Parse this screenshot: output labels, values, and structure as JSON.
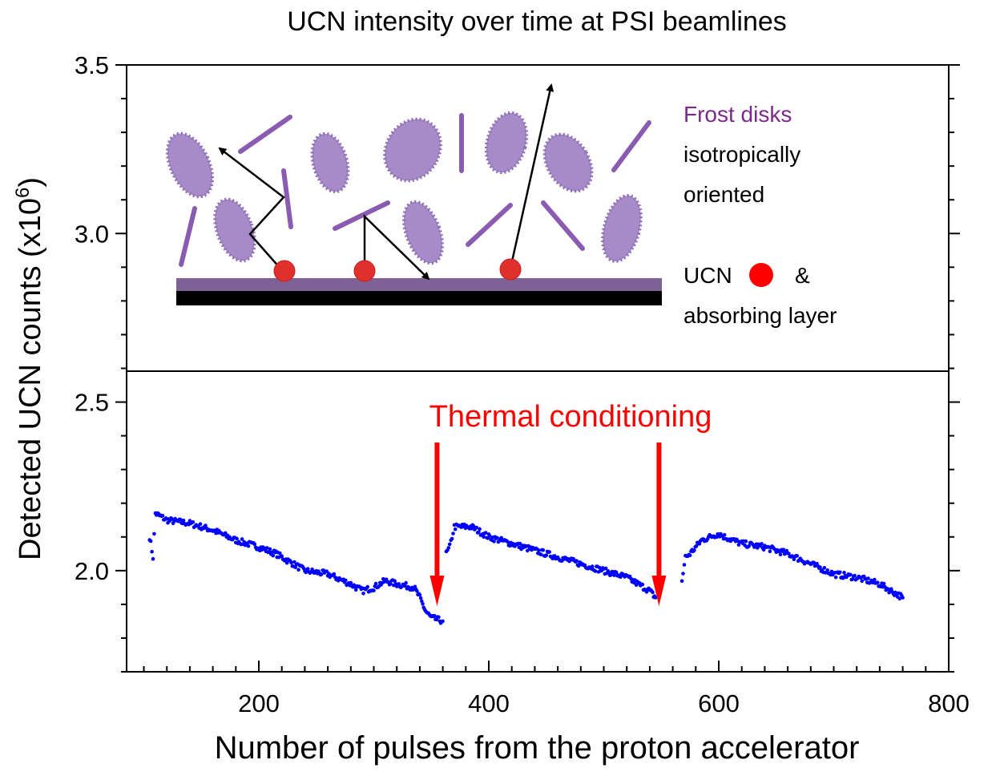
{
  "chart_data": {
    "type": "scatter",
    "title": "UCN intensity over time at PSI beamlines",
    "xlabel": "Number of pulses from the proton accelerator",
    "ylabel_main": "Detected UCN counts (x10",
    "ylabel_exp": "6",
    "ylabel_close": ")",
    "xlim": [
      85,
      800
    ],
    "ylim": [
      1.7,
      3.5
    ],
    "x_ticks": [
      200,
      400,
      600,
      800
    ],
    "x_tick_labels": [
      "200",
      "400",
      "600",
      "800"
    ],
    "y_ticks": [
      2.0,
      2.5,
      3.0,
      3.5
    ],
    "y_tick_labels": [
      "2.0",
      "2.5",
      "3.0",
      "3.5"
    ],
    "marker_color": "#0000ff",
    "segments": [
      {
        "x": [
          105,
          108,
          110,
          120,
          140,
          160,
          180,
          200,
          215,
          220,
          240,
          260,
          280,
          290,
          300,
          310,
          320,
          335,
          340,
          345,
          350,
          360
        ],
        "y": [
          2.1,
          2.04,
          2.17,
          2.15,
          2.14,
          2.12,
          2.09,
          2.07,
          2.05,
          2.04,
          2.0,
          1.99,
          1.96,
          1.94,
          1.95,
          1.97,
          1.96,
          1.95,
          1.92,
          1.88,
          1.86,
          1.85
        ]
      },
      {
        "x": [
          363,
          366,
          370,
          385,
          400,
          420,
          440,
          460,
          480,
          500,
          520,
          540,
          545
        ],
        "y": [
          2.05,
          2.07,
          2.13,
          2.13,
          2.1,
          2.08,
          2.06,
          2.04,
          2.02,
          2.0,
          1.98,
          1.94,
          1.92
        ]
      },
      {
        "x": [
          568,
          571,
          575,
          585,
          600,
          605,
          620,
          640,
          660,
          680,
          700,
          720,
          740,
          760
        ],
        "y": [
          1.97,
          2.04,
          2.05,
          2.09,
          2.11,
          2.1,
          2.08,
          2.07,
          2.05,
          2.02,
          1.99,
          1.98,
          1.96,
          1.92
        ]
      }
    ],
    "annotations": {
      "frost_disks": "Frost disks",
      "isotropically": "isotropically",
      "oriented": "oriented",
      "ucn": "UCN",
      "ampersand": "&",
      "absorbing_layer": "absorbing layer",
      "thermal_conditioning": "Thermal conditioning"
    },
    "thermal_arrow_x": [
      355,
      548
    ],
    "annotation_color": "#ff0000",
    "frost_color": "#7b2a8c",
    "disk_color": "#a78bc8",
    "ucn_color": "#e0302b"
  }
}
